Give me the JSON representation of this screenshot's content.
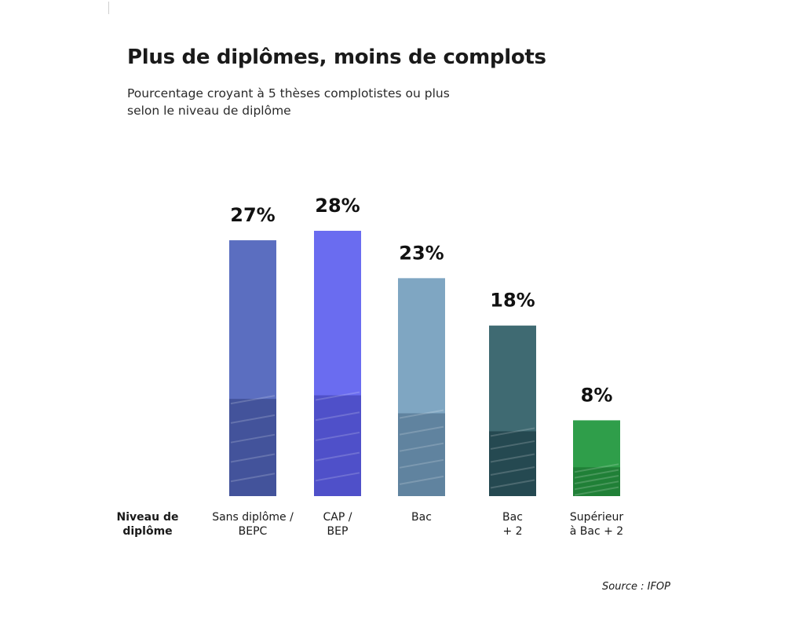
{
  "chart_data": {
    "type": "bar",
    "title": "Plus de diplômes, moins de complots",
    "subtitle_lines": [
      "Pourcentage croyant à 5 thèses complotistes ou plus",
      "selon le niveau de diplôme"
    ],
    "xlabel_lines": [
      "Niveau de",
      "diplôme"
    ],
    "categories": [
      [
        "Sans diplôme /",
        "BEPC"
      ],
      [
        "CAP /",
        "BEP"
      ],
      [
        "Bac"
      ],
      [
        "Bac",
        "+ 2"
      ],
      [
        "Supérieur",
        "à Bac + 2"
      ]
    ],
    "values": [
      27,
      28,
      23,
      18,
      8
    ],
    "value_labels": [
      "27%",
      "28%",
      "23%",
      "18%",
      "8%"
    ],
    "unit": "%",
    "bar_colors": [
      "#5b6ec0",
      "#6a6cf0",
      "#7fa6c2",
      "#3f6a72",
      "#2f9e4a"
    ],
    "bar_shade_colors": [
      "#3f4f94",
      "#4a4bc2",
      "#5a7d99",
      "#21434b",
      "#1d7a34"
    ],
    "ylim": [
      0,
      28
    ],
    "grid": false,
    "legend": "none",
    "source": "Source : IFOP"
  }
}
